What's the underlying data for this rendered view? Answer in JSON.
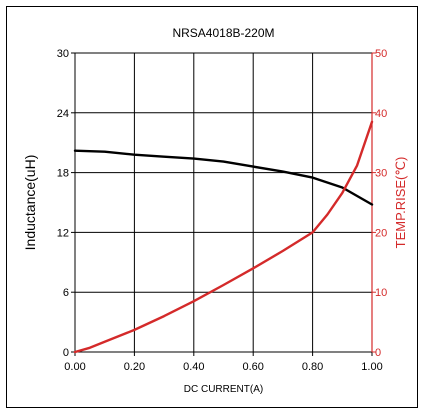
{
  "chart_data": {
    "type": "line",
    "title": "NRSA4018B-220M",
    "xlabel": "DC CURRENT(A)",
    "ylabel_left": "Inductance(uH)",
    "ylabel_right": "TEMP.RISE(℃)",
    "xlim": [
      0,
      1.0
    ],
    "ylim_left": [
      0,
      30
    ],
    "ylim_right": [
      0,
      50
    ],
    "x_ticks": [
      "0.00",
      "0.20",
      "0.40",
      "0.60",
      "0.80",
      "1.00"
    ],
    "y_left_ticks": [
      "0",
      "6",
      "12",
      "18",
      "24",
      "30"
    ],
    "y_right_ticks": [
      "0",
      "10",
      "20",
      "30",
      "40",
      "50"
    ],
    "grid": true,
    "colors": {
      "inductance": "#000000",
      "temp": "#d42a2a",
      "right_axis": "#d42a2a"
    },
    "series": [
      {
        "axis": "left",
        "x": [
          0.0,
          0.1,
          0.2,
          0.3,
          0.4,
          0.5,
          0.6,
          0.7,
          0.8,
          0.9,
          1.0
        ],
        "values": [
          20.2,
          20.1,
          19.8,
          19.6,
          19.4,
          19.1,
          18.6,
          18.1,
          17.5,
          16.5,
          14.8
        ]
      },
      {
        "axis": "right",
        "x": [
          0.0,
          0.05,
          0.1,
          0.2,
          0.3,
          0.4,
          0.5,
          0.6,
          0.7,
          0.8,
          0.85,
          0.9,
          0.95,
          1.0
        ],
        "values": [
          0,
          0.7,
          1.7,
          3.7,
          6.0,
          8.5,
          11.2,
          14.0,
          16.9,
          20.0,
          23.0,
          26.6,
          31.2,
          38.5
        ]
      }
    ]
  }
}
